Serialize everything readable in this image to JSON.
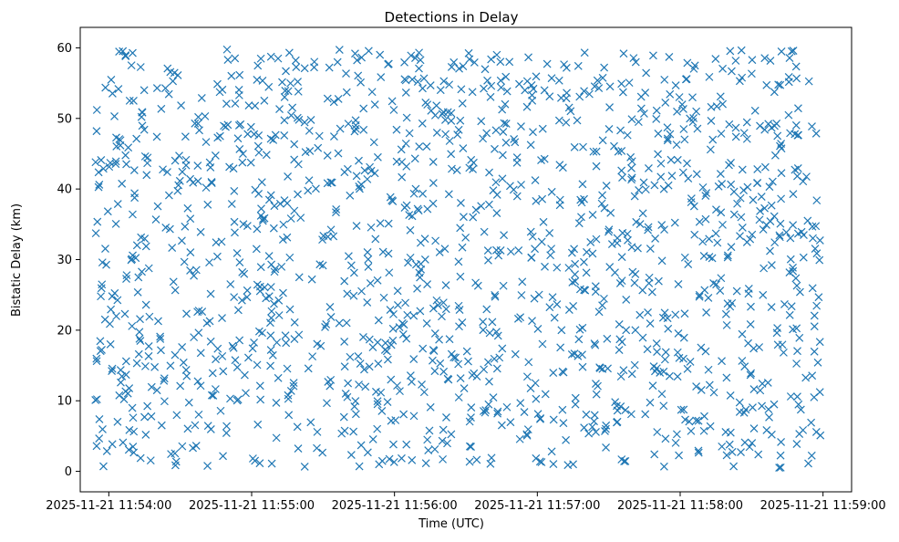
{
  "chart_data": {
    "type": "scatter",
    "title": "Detections in Delay",
    "xlabel": "Time (UTC)",
    "ylabel": "Bistatic Delay (km)",
    "marker": "x",
    "color": "#1f77b4",
    "xlim": [
      "2025-11-21 11:53:48",
      "2025-11-21 11:59:12"
    ],
    "ylim": [
      -2.9,
      62.9
    ],
    "xticks": [
      {
        "label": "2025-11-21 11:54:00",
        "t": "11:54:00"
      },
      {
        "label": "2025-11-21 11:55:00",
        "t": "11:55:00"
      },
      {
        "label": "2025-11-21 11:56:00",
        "t": "11:56:00"
      },
      {
        "label": "2025-11-21 11:57:00",
        "t": "11:57:00"
      },
      {
        "label": "2025-11-21 11:58:00",
        "t": "11:58:00"
      },
      {
        "label": "2025-11-21 11:59:00",
        "t": "11:59:00"
      }
    ],
    "yticks": [
      0,
      10,
      20,
      30,
      40,
      50,
      60
    ],
    "grid": false,
    "legend": false,
    "point_count": 1500,
    "time_range": [
      "11:53:54",
      "11:58:59"
    ],
    "delay_range": [
      0.5,
      59.9
    ],
    "sample_points": [
      {
        "t": "11:53:55",
        "delay_km": 51.2
      },
      {
        "t": "11:54:10",
        "delay_km": 36.4
      },
      {
        "t": "11:54:30",
        "delay_km": 12.1
      },
      {
        "t": "11:54:50",
        "delay_km": 58.3
      },
      {
        "t": "11:55:20",
        "delay_km": 27.5
      },
      {
        "t": "11:55:45",
        "delay_km": 44.0
      },
      {
        "t": "11:56:05",
        "delay_km": 3.8
      },
      {
        "t": "11:56:40",
        "delay_km": 19.6
      },
      {
        "t": "11:57:10",
        "delay_km": 52.9
      },
      {
        "t": "11:57:35",
        "delay_km": 9.2
      },
      {
        "t": "11:58:15",
        "delay_km": 33.7
      },
      {
        "t": "11:58:55",
        "delay_km": 6.9
      }
    ]
  }
}
